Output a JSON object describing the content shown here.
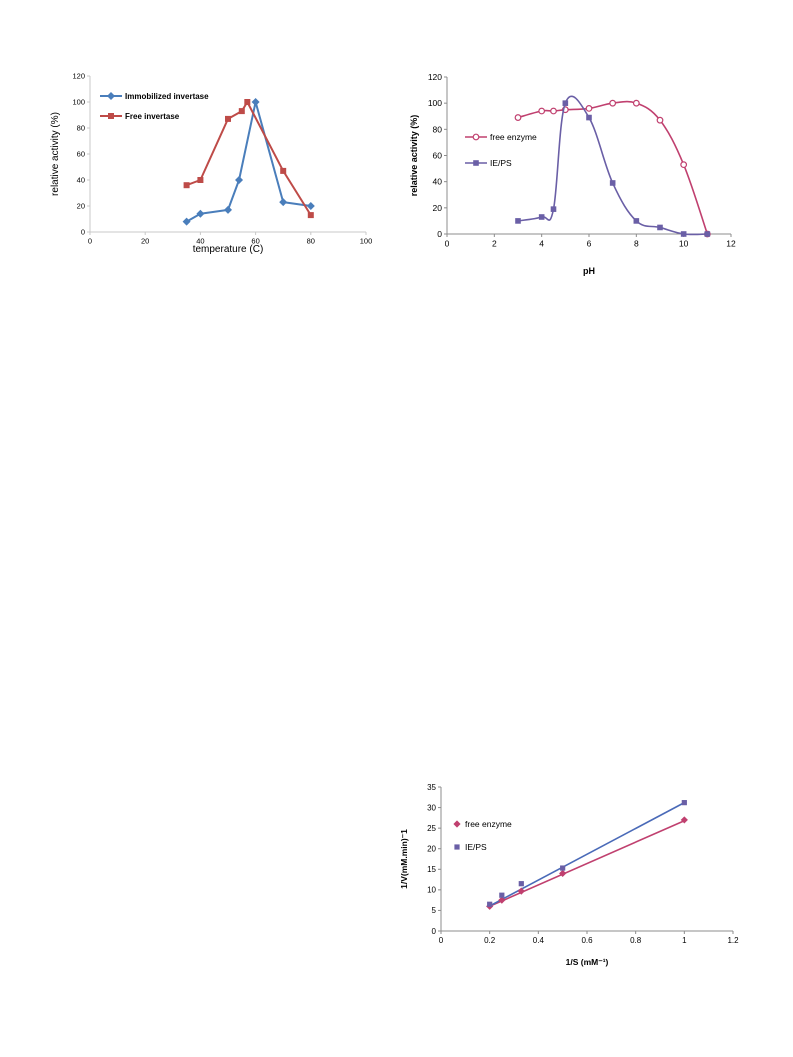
{
  "chart_data": [
    {
      "id": "temp",
      "type": "line",
      "xlabel": "temperature (C)",
      "ylabel": "relative activity (%)",
      "xlim": [
        0,
        100
      ],
      "ylim": [
        0,
        120
      ],
      "xticks": [
        "0",
        "20",
        "40",
        "60",
        "80",
        "100"
      ],
      "yticks": [
        "0",
        "20",
        "40",
        "60",
        "80",
        "100",
        "120"
      ],
      "legend_position": "top-left",
      "series": [
        {
          "name": "Immobilized invertase",
          "color": "#4a7ebb",
          "marker": "diamond",
          "x": [
            35,
            40,
            50,
            54,
            60,
            70,
            80
          ],
          "y": [
            8,
            14,
            17,
            40,
            100,
            23,
            20
          ]
        },
        {
          "name": "Free invertase",
          "color": "#be4b48",
          "marker": "square",
          "x": [
            35,
            40,
            50,
            55,
            57,
            70,
            80
          ],
          "y": [
            36,
            40,
            87,
            93,
            100,
            47,
            13
          ]
        }
      ]
    },
    {
      "id": "ph",
      "type": "line",
      "xlabel": "pH",
      "ylabel": "relative activity (%)",
      "xlim": [
        0,
        12
      ],
      "ylim": [
        0,
        120
      ],
      "xticks": [
        "0",
        "2",
        "4",
        "6",
        "8",
        "10",
        "12"
      ],
      "yticks": [
        "0",
        "20",
        "40",
        "60",
        "80",
        "100",
        "120"
      ],
      "legend_position": "left",
      "series": [
        {
          "name": "free enzyme",
          "color": "#c0406f",
          "marker": "circle",
          "x": [
            3,
            4,
            4.5,
            5,
            6,
            7,
            8,
            9,
            10,
            11
          ],
          "y": [
            89,
            94,
            94,
            95,
            96,
            100,
            100,
            87,
            53,
            0
          ]
        },
        {
          "name": "IE/PS",
          "color": "#6a5fa6",
          "marker": "square",
          "x": [
            3,
            4,
            4.5,
            5,
            6,
            7,
            8,
            9,
            10,
            11
          ],
          "y": [
            10,
            13,
            19,
            100,
            89,
            39,
            10,
            5,
            0,
            0
          ]
        }
      ]
    },
    {
      "id": "lb",
      "type": "scatter",
      "xlabel": "1/S (mM⁻¹)",
      "ylabel": "1/V(mM.min)⁻1",
      "xlim": [
        0,
        1.2
      ],
      "ylim": [
        0,
        35
      ],
      "xticks": [
        "0",
        "0.2",
        "0.4",
        "0.6",
        "0.8",
        "1",
        "1.2"
      ],
      "yticks": [
        "0",
        "5",
        "10",
        "15",
        "20",
        "25",
        "30",
        "35"
      ],
      "legend_position": "left",
      "series": [
        {
          "name": "free enzyme",
          "color": "#c0406f",
          "marker": "diamond",
          "x": [
            0.2,
            0.25,
            0.33,
            0.5,
            1.0
          ],
          "y": [
            6.0,
            7.5,
            9.7,
            14.0,
            27.0
          ]
        },
        {
          "name": "IE/PS",
          "color": "#6a5fa6",
          "marker": "square",
          "x": [
            0.2,
            0.25,
            0.33,
            0.5,
            1.0
          ],
          "y": [
            6.5,
            8.7,
            11.5,
            15.3,
            31.2
          ]
        }
      ],
      "trendlines": [
        {
          "series": "free enzyme",
          "color": "#c0406f",
          "x": [
            0.2,
            1.0
          ],
          "y": [
            6.0,
            26.8
          ]
        },
        {
          "series": "IE/PS",
          "color": "#4a6ab8",
          "x": [
            0.2,
            1.0
          ],
          "y": [
            6.1,
            31.2
          ]
        }
      ]
    }
  ]
}
